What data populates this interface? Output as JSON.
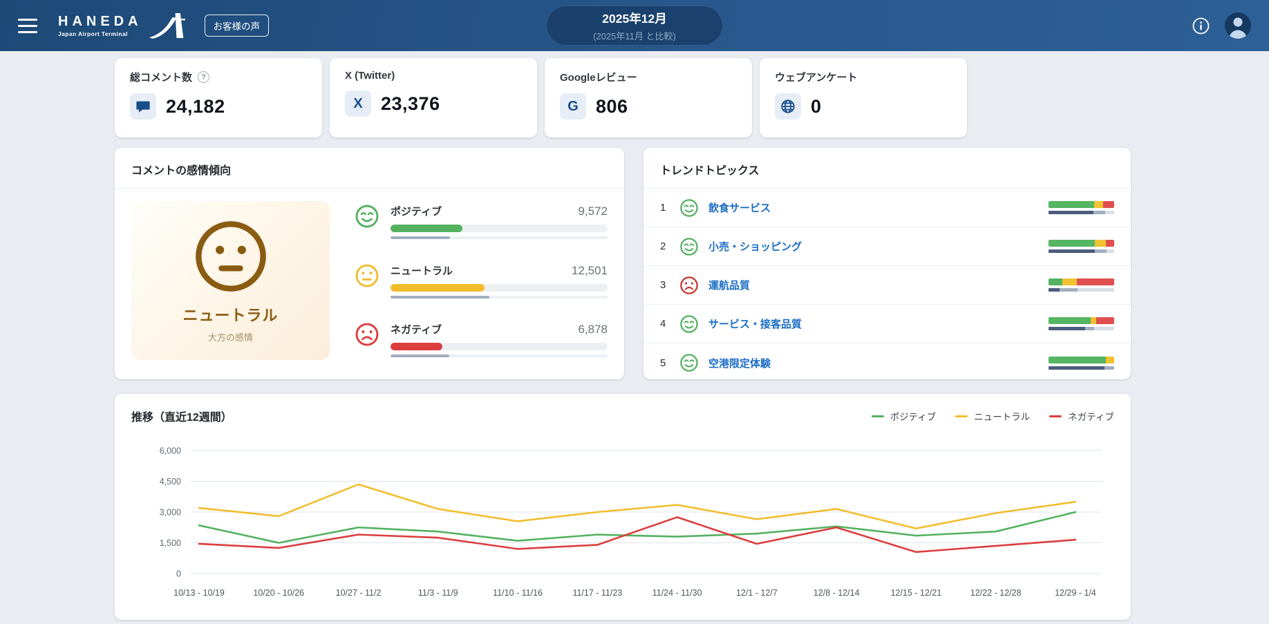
{
  "header": {
    "logo_title": "HANEDA",
    "logo_subtitle": "Japan Airport Terminal",
    "badge": "お客様の声",
    "period": "2025年12月",
    "comparison": "(2025年11月 と比較)"
  },
  "colors": {
    "header_bg": "#27578c",
    "accent_navy": "#174e89",
    "positive": "#53b15f",
    "neutral": "#f2bd2d",
    "negative": "#dc3e3e",
    "link_blue": "#1b6ec5",
    "overall_brown": "#8a5c12",
    "prev_bar_gray": "#a2aebf"
  },
  "stats": {
    "cards": [
      {
        "label": "総コメント数",
        "value": "24,182",
        "icon": "comment-icon",
        "has_help": true
      },
      {
        "label": "X (Twitter)",
        "value": "23,376",
        "icon": "x-twitter-icon",
        "has_help": false
      },
      {
        "label": "Googleレビュー",
        "value": "806",
        "icon": "google-icon",
        "has_help": false
      },
      {
        "label": "ウェブアンケート",
        "value": "0",
        "icon": "globe-icon",
        "has_help": false
      }
    ]
  },
  "sentiment": {
    "title": "コメントの感情傾向",
    "overall": {
      "label": "ニュートラル",
      "sublabel": "大方の感情",
      "mood": "neutral"
    },
    "rows": [
      {
        "label": "ポジティブ",
        "value": "9,572",
        "mood": "positive",
        "color": "#53b15f",
        "percent": 33.1,
        "prev_percent": 27.5
      },
      {
        "label": "ニュートラル",
        "value": "12,501",
        "mood": "neutral",
        "color": "#f2bd2d",
        "percent": 43.2,
        "prev_percent": 45.5
      },
      {
        "label": "ネガティブ",
        "value": "6,878",
        "mood": "negative",
        "color": "#dc3e3e",
        "percent": 23.8,
        "prev_percent": 27.0
      }
    ]
  },
  "topics": {
    "title": "トレンドトピックス",
    "split_colors": [
      "#56b562",
      "#f1c232",
      "#e04f4f"
    ],
    "prev_split_colors": [
      "#4c5d7d",
      "#a3afc0",
      "#d8dee5"
    ],
    "rows": [
      {
        "rank": "1",
        "label": "飲食サービス",
        "mood": "positive",
        "split": [
          69,
          14,
          17
        ],
        "prev_split": [
          68,
          18,
          14
        ]
      },
      {
        "rank": "2",
        "label": "小売・ショッピング",
        "mood": "positive",
        "split": [
          70,
          17,
          13
        ],
        "prev_split": [
          70,
          18,
          12
        ]
      },
      {
        "rank": "3",
        "label": "運航品質",
        "mood": "negative",
        "split": [
          21,
          22,
          57
        ],
        "prev_split": [
          17,
          27,
          56
        ]
      },
      {
        "rank": "4",
        "label": "サービス・接客品質",
        "mood": "positive",
        "split": [
          64,
          9,
          27
        ],
        "prev_split": [
          56,
          13,
          31
        ]
      },
      {
        "rank": "5",
        "label": "空港限定体験",
        "mood": "positive",
        "split": [
          87,
          13,
          0
        ],
        "prev_split": [
          85,
          15,
          0
        ]
      }
    ]
  },
  "chart_data": {
    "type": "line",
    "title": "推移（直近12週間）",
    "x": [
      "10/13 - 10/19",
      "10/20 - 10/26",
      "10/27 - 11/2",
      "11/3 - 11/9",
      "11/10 - 11/16",
      "11/17 - 11/23",
      "11/24 - 11/30",
      "12/1 - 12/7",
      "12/8 - 12/14",
      "12/15 - 12/21",
      "12/22 - 12/28",
      "12/29 - 1/4"
    ],
    "series": [
      {
        "name": "ポジティブ",
        "color": "#53b15f",
        "values": [
          2350,
          1500,
          2250,
          2050,
          1600,
          1900,
          1800,
          1950,
          2300,
          1850,
          2050,
          3000
        ]
      },
      {
        "name": "ニュートラル",
        "color": "#f2bd2d",
        "values": [
          3200,
          2800,
          4350,
          3150,
          2550,
          3000,
          3350,
          2650,
          3150,
          2200,
          2950,
          3500
        ]
      },
      {
        "name": "ネガティブ",
        "color": "#dc3e3e",
        "values": [
          1450,
          1250,
          1900,
          1750,
          1200,
          1400,
          2750,
          1450,
          2250,
          1050,
          1350,
          1650
        ]
      }
    ],
    "ylim": [
      0,
      6000
    ],
    "yticks": [
      0,
      1500,
      3000,
      4500,
      6000
    ],
    "grid": true,
    "legend_position": "top-right"
  }
}
